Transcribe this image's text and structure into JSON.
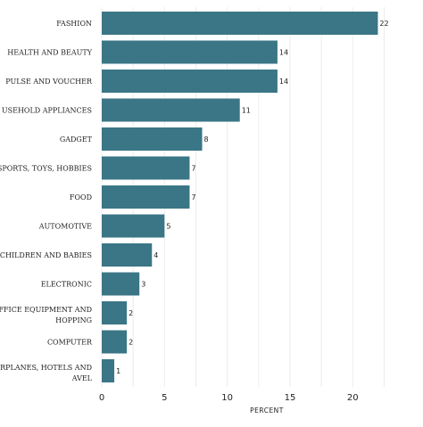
{
  "chart_data": {
    "type": "bar",
    "orientation": "horizontal",
    "categories": [
      "FASHION",
      "HEALTH AND BEAUTY",
      "PULSE AND VOUCHER",
      "USEHOLD APPLIANCES",
      "GADGET",
      "SPORTS, TOYS, HOBBIES",
      "FOOD",
      "AUTOMOTIVE",
      "CHILDREN AND BABIES",
      "ELECTRONIC",
      [
        "FFICE EQUIPMENT AND",
        "HOPPING"
      ],
      "COMPUTER",
      [
        "RPLANES, HOTELS AND",
        "AVEL"
      ]
    ],
    "values": [
      22,
      14,
      14,
      11,
      8,
      7,
      7,
      5,
      4,
      3,
      2,
      2,
      1
    ],
    "value_labels": [
      "22",
      "14",
      "14",
      "11",
      "8",
      "7",
      "7",
      "5",
      "4",
      "3",
      "2",
      "2",
      "1"
    ],
    "xlabel": "PERCENT",
    "ylabel": "",
    "title": "",
    "xlim": [
      0,
      23
    ],
    "xticks": [
      0,
      5,
      10,
      15,
      20
    ],
    "xtick_labels": [
      "0",
      "5",
      "10",
      "15",
      "20"
    ],
    "grid": "vertical",
    "legend": "none",
    "bar_color": "#3a7686",
    "grid_color": "#ececec"
  }
}
